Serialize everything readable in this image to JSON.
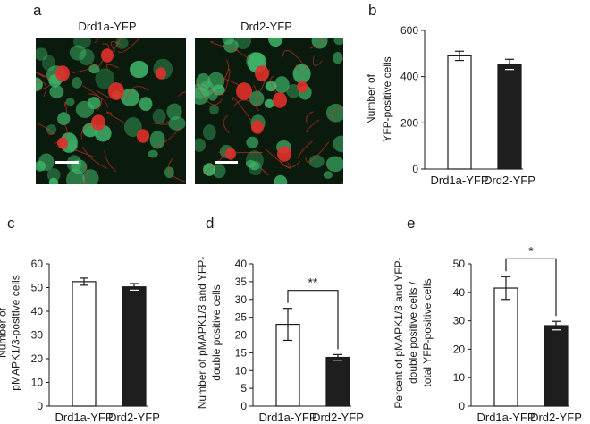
{
  "panels": {
    "a": "a",
    "b": "b",
    "c": "c",
    "d": "d",
    "e": "e"
  },
  "micrographs": [
    {
      "label": "Drd1a-YFP"
    },
    {
      "label": "Drd2-YFP"
    }
  ],
  "colors": {
    "open_bar": "#ffffff",
    "filled_bar": "#1e1e1e",
    "micro_bg": "#0a1a0c",
    "yfp_green": "#3fb56a",
    "pmapk_red": "#e0302a"
  },
  "chart_data": [
    {
      "id": "b",
      "type": "bar",
      "categories": [
        "Drd1a-YFP",
        "Drd2-YFP"
      ],
      "values": [
        490,
        453
      ],
      "errors": [
        20,
        22
      ],
      "ylabel": [
        "Number of",
        "YFP-positive cells"
      ],
      "ylim": [
        0,
        600
      ],
      "yticks": [
        0,
        200,
        400,
        600
      ],
      "significance": null
    },
    {
      "id": "c",
      "type": "bar",
      "categories": [
        "Drd1a-YFP",
        "Drd2-YFP"
      ],
      "values": [
        52.5,
        50.3
      ],
      "errors": [
        1.5,
        1.4
      ],
      "ylabel": [
        "Number of",
        "pMAPK1/3-positive cells"
      ],
      "ylim": [
        0,
        60
      ],
      "yticks": [
        0,
        10,
        20,
        30,
        40,
        50,
        60
      ],
      "significance": null
    },
    {
      "id": "d",
      "type": "bar",
      "categories": [
        "Drd1a-YFP",
        "Drd2-YFP"
      ],
      "values": [
        23,
        13.7
      ],
      "errors": [
        4.5,
        0.8
      ],
      "ylabel": [
        "Number of pMAPK1/3 and YFP-",
        "double positive cells"
      ],
      "ylim": [
        0,
        40
      ],
      "yticks": [
        0,
        5,
        10,
        15,
        20,
        25,
        30,
        35,
        40
      ],
      "significance": "**"
    },
    {
      "id": "e",
      "type": "bar",
      "categories": [
        "Drd1a-YFP",
        "Drd2-YFP"
      ],
      "values": [
        41.5,
        28.3
      ],
      "errors": [
        4.0,
        1.5
      ],
      "ylabel": [
        "Percent of pMAPK1/3 and YFP-",
        "double positive cells /",
        "total YFP-positive cells"
      ],
      "ylim": [
        0,
        50
      ],
      "yticks": [
        0,
        10,
        20,
        30,
        40,
        50
      ],
      "significance": "*"
    }
  ]
}
